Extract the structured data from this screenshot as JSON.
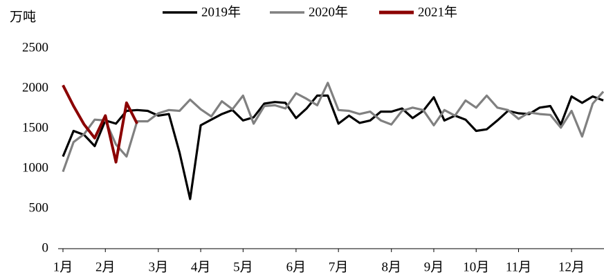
{
  "chart_data": {
    "type": "line",
    "y_label": "万吨",
    "categories": [
      "1月",
      null,
      null,
      null,
      "2月",
      null,
      null,
      null,
      null,
      "3月",
      null,
      null,
      null,
      "4月",
      null,
      null,
      null,
      "5月",
      null,
      null,
      null,
      null,
      "6月",
      null,
      null,
      null,
      "7月",
      null,
      null,
      null,
      null,
      "8月",
      null,
      null,
      null,
      "9月",
      null,
      null,
      null,
      "10月",
      null,
      null,
      null,
      "11月",
      null,
      null,
      null,
      null,
      "12月",
      null,
      null,
      null
    ],
    "series": [
      {
        "name": "2019年",
        "color": "#000000",
        "values": [
          1150,
          1470,
          1420,
          1280,
          1600,
          1560,
          1720,
          1730,
          1720,
          1660,
          1680,
          1200,
          620,
          1540,
          1610,
          1680,
          1730,
          1600,
          1640,
          1810,
          1830,
          1820,
          1630,
          1750,
          1910,
          1910,
          1560,
          1660,
          1570,
          1600,
          1710,
          1710,
          1750,
          1630,
          1720,
          1890,
          1600,
          1660,
          1610,
          1470,
          1490,
          1600,
          1720,
          1690,
          1680,
          1760,
          1780,
          1550,
          1900,
          1820,
          1900,
          1850
        ]
      },
      {
        "name": "2020年",
        "color": "#808080",
        "values": [
          960,
          1330,
          1430,
          1610,
          1600,
          1300,
          1150,
          1590,
          1590,
          1690,
          1730,
          1720,
          1860,
          1740,
          1650,
          1840,
          1740,
          1910,
          1560,
          1780,
          1790,
          1750,
          1940,
          1870,
          1790,
          2070,
          1730,
          1720,
          1680,
          1710,
          1600,
          1550,
          1720,
          1760,
          1730,
          1540,
          1730,
          1660,
          1850,
          1760,
          1910,
          1760,
          1730,
          1620,
          1700,
          1680,
          1670,
          1510,
          1720,
          1400,
          1810,
          1960
        ]
      },
      {
        "name": "2021年",
        "color": "#8b0000",
        "values": [
          2040,
          1780,
          1550,
          1380,
          1660,
          1080,
          1820,
          1560,
          null,
          null,
          null,
          null,
          null,
          null,
          null,
          null,
          null,
          null,
          null,
          null,
          null,
          null,
          null,
          null,
          null,
          null,
          null,
          null,
          null,
          null,
          null,
          null,
          null,
          null,
          null,
          null,
          null,
          null,
          null,
          null,
          null,
          null,
          null,
          null,
          null,
          null,
          null,
          null,
          null,
          null,
          null,
          null
        ]
      }
    ],
    "ylim": [
      0,
      2500
    ],
    "yticks": [
      0,
      500,
      1000,
      1500,
      2000,
      2500
    ],
    "grid": false
  }
}
